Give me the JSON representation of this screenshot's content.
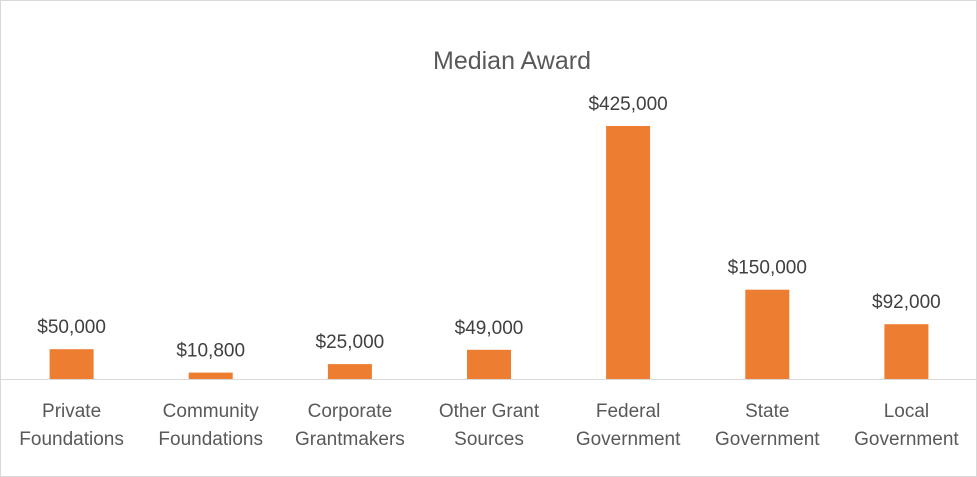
{
  "chart_data": {
    "type": "bar",
    "title": "Median Award",
    "categories": [
      [
        "Private",
        "Foundations"
      ],
      [
        "Community",
        "Foundations"
      ],
      [
        "Corporate",
        "Grantmakers"
      ],
      [
        "Other Grant",
        "Sources"
      ],
      [
        "Federal",
        "Government"
      ],
      [
        "State",
        "Government"
      ],
      [
        "Local",
        "Government"
      ]
    ],
    "values": [
      50000,
      10800,
      25000,
      49000,
      425000,
      150000,
      92000
    ],
    "data_labels": [
      "$50,000",
      "$10,800",
      "$25,000",
      "$49,000",
      "$425,000",
      "$150,000",
      "$92,000"
    ],
    "xlabel": "",
    "ylabel": "",
    "ylim": [
      0,
      460000
    ],
    "grid": false,
    "legend": "none",
    "bar_color": "#ED7D31",
    "axis_color": "#d9d9d9"
  }
}
